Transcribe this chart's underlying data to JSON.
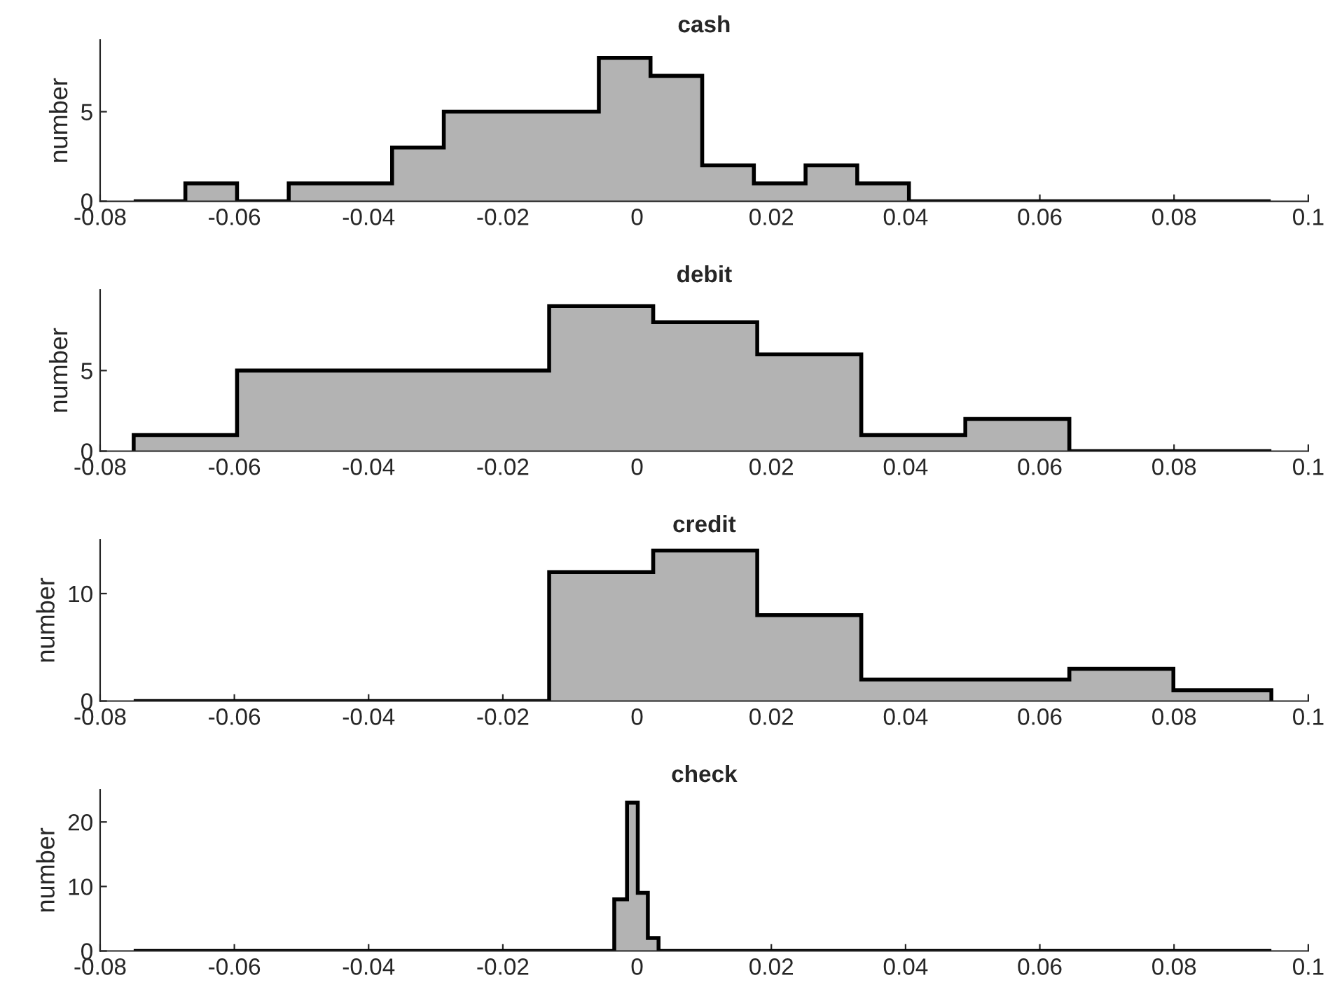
{
  "chart_data": [
    {
      "type": "histogram",
      "title": "cash",
      "ylabel": "number",
      "color": "#b3b3b3",
      "bins": [
        -0.075,
        -0.0673,
        -0.0596,
        -0.0519,
        -0.0442,
        -0.0365,
        -0.0288,
        -0.0211,
        -0.0134,
        -0.0057,
        0.002,
        0.0097,
        0.0174,
        0.0251,
        0.0328,
        0.0405,
        0.0482,
        0.0559,
        0.0636,
        0.0713,
        0.079,
        0.0867,
        0.0944
      ],
      "values": [
        0,
        1,
        0,
        1,
        1,
        3,
        5,
        5,
        5,
        8,
        7,
        2,
        1,
        2,
        1,
        0,
        0,
        0,
        0,
        0,
        0,
        0
      ],
      "xlim": [
        -0.08,
        0.1
      ],
      "ylim": [
        0,
        9
      ],
      "xticks": [
        -0.08,
        -0.06,
        -0.04,
        -0.02,
        0,
        0.02,
        0.04,
        0.06,
        0.08,
        0.1
      ],
      "yticks": [
        0,
        5
      ],
      "grid": false
    },
    {
      "type": "histogram",
      "title": "debit",
      "ylabel": "number",
      "color": "#b3b3b3",
      "bins": [
        -0.075,
        -0.0596,
        -0.0441,
        -0.0286,
        -0.0131,
        0.0024,
        0.0179,
        0.0334,
        0.0489,
        0.0644,
        0.0799,
        0.0945
      ],
      "values": [
        1,
        5,
        5,
        5,
        9,
        8,
        6,
        1,
        2,
        0,
        0
      ],
      "xlim": [
        -0.08,
        0.1
      ],
      "ylim": [
        0,
        10
      ],
      "xticks": [
        -0.08,
        -0.06,
        -0.04,
        -0.02,
        0,
        0.02,
        0.04,
        0.06,
        0.08,
        0.1
      ],
      "yticks": [
        0,
        5
      ],
      "grid": false
    },
    {
      "type": "histogram",
      "title": "credit",
      "ylabel": "number",
      "color": "#b3b3b3",
      "bins": [
        -0.075,
        -0.0596,
        -0.0441,
        -0.0286,
        -0.0131,
        0.0024,
        0.0179,
        0.0334,
        0.0489,
        0.0644,
        0.0799,
        0.0945
      ],
      "values": [
        0,
        0,
        0,
        0,
        12,
        14,
        8,
        2,
        2,
        3,
        1
      ],
      "xlim": [
        -0.08,
        0.1
      ],
      "ylim": [
        0,
        15
      ],
      "xticks": [
        -0.08,
        -0.06,
        -0.04,
        -0.02,
        0,
        0.02,
        0.04,
        0.06,
        0.08,
        0.1
      ],
      "yticks": [
        0,
        10
      ],
      "grid": false
    },
    {
      "type": "histogram",
      "title": "check",
      "ylabel": "number",
      "color": "#b3b3b3",
      "bins": [
        -0.075,
        -0.0034,
        -0.0015,
        0.0001,
        0.0016,
        0.0032,
        0.0945
      ],
      "values": [
        0,
        8,
        23,
        9,
        2,
        0
      ],
      "xlim": [
        -0.08,
        0.1
      ],
      "ylim": [
        0,
        25
      ],
      "xticks": [
        -0.08,
        -0.06,
        -0.04,
        -0.02,
        0,
        0.02,
        0.04,
        0.06,
        0.08,
        0.1
      ],
      "yticks": [
        0,
        10,
        20
      ],
      "grid": false
    }
  ]
}
